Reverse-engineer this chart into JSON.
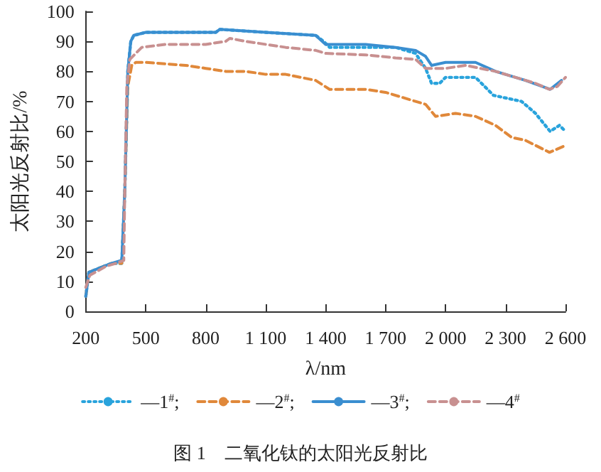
{
  "chart_data": {
    "type": "line",
    "title": "图 1　二氧化钛的太阳光反射比",
    "xlabel": "λ/nm",
    "ylabel": "太阳光反射比/%",
    "xlim": [
      200,
      2600
    ],
    "xticks": [
      200,
      500,
      800,
      {
        "value": 1100,
        "label": "1 100"
      },
      {
        "value": 1400,
        "label": "1 400"
      },
      {
        "value": 1700,
        "label": "1 700"
      },
      {
        "value": 2000,
        "label": "2 000"
      },
      {
        "value": 2300,
        "label": "2 300"
      },
      {
        "value": 2600,
        "label": "2 600"
      }
    ],
    "ylim": [
      0,
      100
    ],
    "yticks": [
      0,
      10,
      20,
      30,
      40,
      50,
      60,
      70,
      80,
      90,
      100
    ],
    "grid": false,
    "legend": "bottom",
    "marker": "none",
    "series": [
      {
        "name": "—1$^{#}$;",
        "color": "#29a3dc",
        "line_style": "dotted",
        "x": [
          200,
          215,
          290,
          330,
          380,
          395,
          410,
          425,
          440,
          500,
          700,
          850,
          870,
          1100,
          1350,
          1390,
          1420,
          1600,
          1750,
          1850,
          1900,
          1930,
          1970,
          2000,
          2150,
          2240,
          2380,
          2450,
          2523,
          2570,
          2600
        ],
        "values": [
          5,
          13,
          15,
          16,
          16,
          40,
          80,
          90,
          92,
          93,
          93,
          93,
          94,
          93,
          92,
          90,
          88,
          88,
          88,
          86,
          81,
          76,
          76,
          78,
          78,
          72,
          70,
          66,
          60,
          62,
          60
        ]
      },
      {
        "name": "—2$^{#}$;",
        "color": "#e0883a",
        "line_style": "dashed",
        "x": [
          200,
          215,
          290,
          330,
          380,
          395,
          410,
          430,
          450,
          500,
          700,
          800,
          900,
          1000,
          1100,
          1200,
          1350,
          1420,
          1600,
          1700,
          1800,
          1900,
          1950,
          2050,
          2150,
          2250,
          2330,
          2400,
          2520,
          2590
        ],
        "values": [
          5,
          13,
          15,
          16,
          16,
          40,
          75,
          82,
          83,
          83,
          82,
          81,
          80,
          80,
          79,
          79,
          77,
          74,
          74,
          73,
          71,
          69,
          65,
          66,
          65,
          62,
          58,
          57,
          53,
          55
        ]
      },
      {
        "name": "—3$^{#}$;",
        "color": "#3a8ed0",
        "line_style": "solid",
        "x": [
          200,
          215,
          290,
          330,
          380,
          395,
          410,
          425,
          440,
          500,
          700,
          850,
          870,
          1100,
          1350,
          1400,
          1600,
          1750,
          1850,
          1900,
          1930,
          2000,
          2150,
          2250,
          2400,
          2523,
          2580
        ],
        "values": [
          5,
          13,
          15,
          16,
          17,
          40,
          80,
          90,
          92,
          93,
          93,
          93,
          94,
          93,
          92,
          89,
          89,
          88,
          87,
          85,
          82,
          83,
          83,
          80,
          77,
          74,
          77
        ]
      },
      {
        "name": "—4$^{#}$",
        "color": "#c89090",
        "line_style": "dashed",
        "x": [
          200,
          220,
          300,
          350,
          390,
          395,
          405,
          420,
          480,
          600,
          800,
          900,
          920,
          1000,
          1200,
          1350,
          1400,
          1600,
          1750,
          1850,
          1900,
          2000,
          2100,
          2250,
          2350,
          2450,
          2520,
          2560,
          2600
        ],
        "values": [
          8,
          12,
          15,
          16,
          17,
          40,
          75,
          84,
          88,
          89,
          89,
          90,
          91,
          90,
          88,
          87,
          86,
          85.5,
          84.5,
          84,
          81,
          81,
          82,
          80,
          78,
          76,
          74,
          75,
          78
        ]
      }
    ]
  }
}
